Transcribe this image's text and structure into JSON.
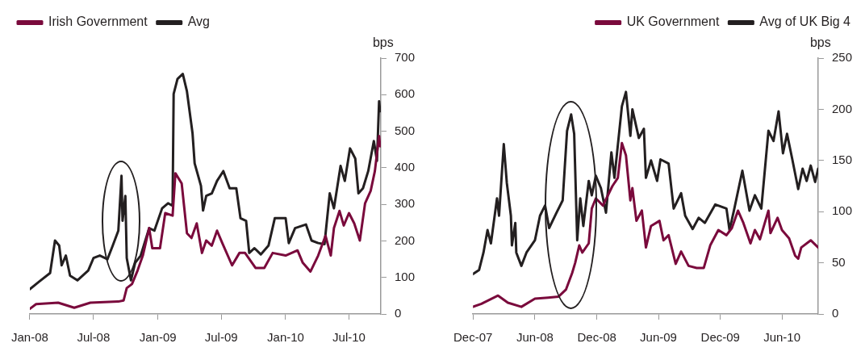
{
  "chart_data": [
    {
      "type": "line",
      "ylabel": "bps",
      "legend": "top left",
      "marker": "none",
      "line_style": "solid",
      "xlim": [
        "2008-01-01",
        "2010-09-30"
      ],
      "xticks": [
        {
          "value": "2008-01-01",
          "label": "Jan-08"
        },
        {
          "value": "2008-07-01",
          "label": "Jul-08"
        },
        {
          "value": "2009-01-01",
          "label": "Jan-09"
        },
        {
          "value": "2009-07-01",
          "label": "Jul-09"
        },
        {
          "value": "2010-01-01",
          "label": "Jan-10"
        },
        {
          "value": "2010-07-01",
          "label": "Jul-10"
        }
      ],
      "ylim": [
        0,
        700
      ],
      "yticks": [
        0,
        100,
        200,
        300,
        400,
        500,
        600,
        700
      ],
      "series": [
        {
          "name": "Irish Government",
          "color": "#7a0a3c",
          "x": [
            "2008-01-01",
            "2008-01-19",
            "2008-03-22",
            "2008-05-07",
            "2008-06-22",
            "2008-09-10",
            "2008-09-25",
            "2008-10-04",
            "2008-10-19",
            "2008-11-04",
            "2008-11-19",
            "2008-12-07",
            "2008-12-16",
            "2009-01-07",
            "2009-01-22",
            "2009-02-12",
            "2009-02-20",
            "2009-03-10",
            "2009-03-25",
            "2009-04-07",
            "2009-04-22",
            "2009-05-07",
            "2009-05-19",
            "2009-06-04",
            "2009-06-19",
            "2009-07-04",
            "2009-08-01",
            "2009-08-22",
            "2009-09-07",
            "2009-10-07",
            "2009-11-01",
            "2009-11-25",
            "2010-01-01",
            "2010-02-04",
            "2010-02-19",
            "2010-03-13",
            "2010-04-04",
            "2010-04-25",
            "2010-05-10",
            "2010-05-19",
            "2010-06-04",
            "2010-06-16",
            "2010-07-01",
            "2010-07-16",
            "2010-08-01",
            "2010-08-16",
            "2010-09-01",
            "2010-09-13",
            "2010-09-25",
            "2010-09-28"
          ],
          "values": [
            14,
            27,
            31,
            17,
            31,
            34,
            37,
            71,
            82,
            119,
            160,
            235,
            180,
            180,
            276,
            269,
            385,
            357,
            221,
            208,
            248,
            167,
            201,
            187,
            228,
            194,
            133,
            167,
            167,
            126,
            126,
            167,
            160,
            174,
            140,
            116,
            160,
            214,
            160,
            235,
            282,
            242,
            276,
            248,
            201,
            303,
            337,
            391,
            487,
            459
          ]
        },
        {
          "name": "Avg",
          "color": "#231f20",
          "x": [
            "2008-01-01",
            "2008-01-27",
            "2008-02-28",
            "2008-03-13",
            "2008-03-25",
            "2008-04-01",
            "2008-04-13",
            "2008-04-25",
            "2008-05-16",
            "2008-06-16",
            "2008-07-01",
            "2008-07-19",
            "2008-08-10",
            "2008-08-25",
            "2008-09-10",
            "2008-09-19",
            "2008-09-22",
            "2008-09-30",
            "2008-10-04",
            "2008-10-16",
            "2008-10-28",
            "2008-11-13",
            "2008-12-07",
            "2008-12-22",
            "2009-01-13",
            "2009-01-30",
            "2009-02-12",
            "2009-02-15",
            "2009-02-26",
            "2009-03-13",
            "2009-03-25",
            "2009-04-10",
            "2009-04-16",
            "2009-05-04",
            "2009-05-10",
            "2009-05-19",
            "2009-06-04",
            "2009-06-19",
            "2009-07-07",
            "2009-07-25",
            "2009-08-13",
            "2009-08-25",
            "2009-09-10",
            "2009-09-19",
            "2009-10-04",
            "2009-10-22",
            "2009-11-13",
            "2009-12-01",
            "2010-01-01",
            "2010-01-10",
            "2010-01-28",
            "2010-02-28",
            "2010-03-16",
            "2010-04-04",
            "2010-04-22",
            "2010-05-07",
            "2010-05-19",
            "2010-06-07",
            "2010-06-19",
            "2010-07-04",
            "2010-07-19",
            "2010-07-28",
            "2010-08-10",
            "2010-08-25",
            "2010-09-10",
            "2010-09-19",
            "2010-09-25",
            "2010-09-28"
          ],
          "values": [
            68,
            88,
            112,
            201,
            187,
            133,
            160,
            105,
            92,
            119,
            153,
            160,
            150,
            187,
            228,
            378,
            255,
            323,
            153,
            92,
            140,
            160,
            235,
            228,
            289,
            303,
            296,
            602,
            643,
            657,
            609,
            494,
            412,
            351,
            283,
            323,
            330,
            364,
            391,
            344,
            344,
            262,
            255,
            167,
            180,
            163,
            187,
            262,
            262,
            194,
            235,
            245,
            201,
            194,
            191,
            330,
            289,
            405,
            364,
            453,
            425,
            330,
            344,
            391,
            473,
            419,
            582,
            555
          ]
        }
      ]
    },
    {
      "type": "line",
      "ylabel": "bps",
      "legend": "top right",
      "marker": "none",
      "line_style": "solid",
      "xlim": [
        "2007-12-01",
        "2010-09-16"
      ],
      "xticks": [
        {
          "value": "2007-12-01",
          "label": "Dec-07"
        },
        {
          "value": "2008-06-01",
          "label": "Jun-08"
        },
        {
          "value": "2008-12-01",
          "label": "Dec-08"
        },
        {
          "value": "2009-06-01",
          "label": "Jun-09"
        },
        {
          "value": "2009-12-01",
          "label": "Dec-09"
        },
        {
          "value": "2010-06-01",
          "label": "Jun-10"
        }
      ],
      "ylim": [
        0,
        250
      ],
      "yticks": [
        0,
        50,
        100,
        150,
        200,
        250
      ],
      "series": [
        {
          "name": "UK Government",
          "color": "#7a0a3c",
          "x": [
            "2007-12-01",
            "2007-12-26",
            "2008-02-13",
            "2008-03-13",
            "2008-04-22",
            "2008-06-01",
            "2008-07-10",
            "2008-08-10",
            "2008-09-01",
            "2008-09-19",
            "2008-09-28",
            "2008-10-10",
            "2008-10-19",
            "2008-11-07",
            "2008-11-16",
            "2008-11-28",
            "2008-12-19",
            "2009-01-16",
            "2009-02-01",
            "2009-02-13",
            "2009-02-25",
            "2009-03-10",
            "2009-03-16",
            "2009-03-28",
            "2009-04-13",
            "2009-04-25",
            "2009-05-10",
            "2009-06-04",
            "2009-06-16",
            "2009-07-01",
            "2009-07-22",
            "2009-08-07",
            "2009-08-29",
            "2009-09-22",
            "2009-10-13",
            "2009-11-01",
            "2009-11-25",
            "2009-12-19",
            "2010-01-04",
            "2010-01-22",
            "2010-02-07",
            "2010-02-28",
            "2010-03-13",
            "2010-03-28",
            "2010-04-22",
            "2010-04-28",
            "2010-05-19",
            "2010-06-01",
            "2010-06-22",
            "2010-07-10",
            "2010-07-19",
            "2010-07-28",
            "2010-08-25",
            "2010-09-16"
          ],
          "values": [
            7,
            10,
            18,
            11,
            7,
            15,
            16,
            17,
            24,
            40,
            50,
            67,
            60,
            69,
            103,
            113,
            106,
            125,
            133,
            167,
            155,
            111,
            123,
            91,
            101,
            65,
            86,
            91,
            72,
            77,
            49,
            61,
            47,
            45,
            45,
            67,
            82,
            77,
            84,
            101,
            89,
            69,
            82,
            73,
            101,
            79,
            94,
            82,
            74,
            57,
            54,
            65,
            72,
            65
          ]
        },
        {
          "name": "Avg of UK Big 4",
          "color": "#231f20",
          "x": [
            "2007-12-01",
            "2007-12-19",
            "2008-01-01",
            "2008-01-13",
            "2008-01-23",
            "2008-02-10",
            "2008-02-16",
            "2008-03-01",
            "2008-03-10",
            "2008-03-22",
            "2008-03-25",
            "2008-04-04",
            "2008-04-07",
            "2008-04-22",
            "2008-05-07",
            "2008-06-01",
            "2008-06-16",
            "2008-07-01",
            "2008-07-13",
            "2008-08-04",
            "2008-08-22",
            "2008-09-04",
            "2008-09-16",
            "2008-09-25",
            "2008-10-04",
            "2008-10-13",
            "2008-10-22",
            "2008-11-07",
            "2008-11-16",
            "2008-11-28",
            "2008-12-13",
            "2008-12-28",
            "2009-01-13",
            "2009-01-22",
            "2009-02-13",
            "2009-02-25",
            "2009-03-10",
            "2009-03-16",
            "2009-04-04",
            "2009-04-19",
            "2009-04-25",
            "2009-05-10",
            "2009-05-28",
            "2009-06-07",
            "2009-07-01",
            "2009-07-16",
            "2009-08-07",
            "2009-08-19",
            "2009-09-10",
            "2009-09-28",
            "2009-10-16",
            "2009-11-16",
            "2009-12-19",
            "2009-12-28",
            "2010-01-10",
            "2010-02-04",
            "2010-02-25",
            "2010-03-13",
            "2010-04-01",
            "2010-04-22",
            "2010-05-07",
            "2010-05-22",
            "2010-06-04",
            "2010-06-16",
            "2010-07-01",
            "2010-07-19",
            "2010-08-01",
            "2010-08-13",
            "2010-08-25",
            "2010-09-07",
            "2010-09-16"
          ],
          "values": [
            39,
            43,
            60,
            82,
            69,
            113,
            96,
            166,
            128,
            96,
            67,
            89,
            60,
            47,
            60,
            72,
            96,
            106,
            84,
            99,
            111,
            179,
            195,
            176,
            72,
            113,
            86,
            130,
            116,
            135,
            123,
            99,
            158,
            133,
            203,
            217,
            174,
            200,
            172,
            181,
            133,
            150,
            130,
            151,
            147,
            103,
            118,
            96,
            83,
            94,
            89,
            107,
            103,
            82,
            101,
            140,
            101,
            116,
            103,
            179,
            169,
            198,
            157,
            176,
            152,
            122,
            142,
            130,
            145,
            129,
            142
          ]
        }
      ]
    }
  ]
}
